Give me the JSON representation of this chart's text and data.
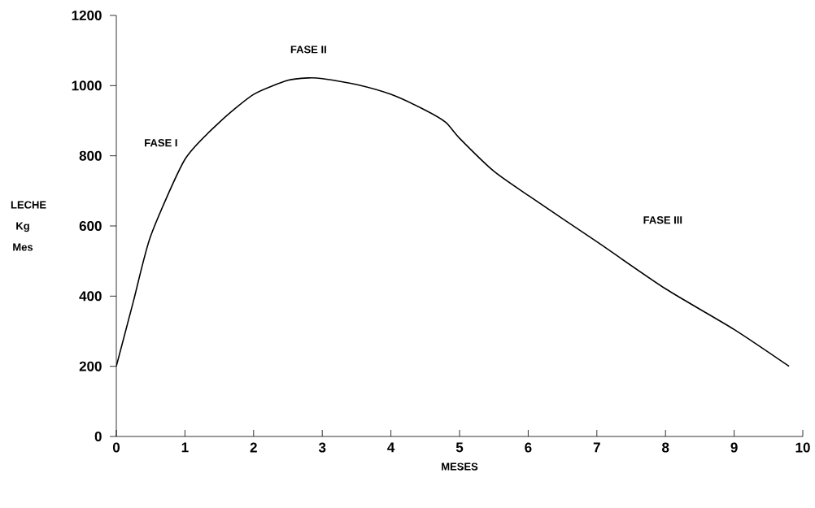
{
  "chart_data": {
    "type": "line",
    "xlabel": "MESES",
    "ylabel": "LECHE Kg Mes",
    "x": [
      0,
      0.25,
      0.5,
      1,
      1.5,
      2,
      2.5,
      2.8,
      3,
      3.5,
      4,
      4.5,
      4.8,
      5,
      5.5,
      6,
      7,
      8,
      9,
      9.8
    ],
    "series": [
      {
        "color": "#000000",
        "values": [
          200,
          386,
          571,
          790,
          895,
          975,
          1015,
          1022,
          1020,
          1003,
          975,
          930,
          895,
          850,
          756,
          687,
          555,
          421,
          305,
          200
        ]
      }
    ],
    "xlim": [
      0,
      10
    ],
    "ylim": [
      0,
      1200
    ],
    "xticks": [
      0,
      1,
      2,
      3,
      4,
      5,
      6,
      7,
      8,
      9,
      10
    ],
    "yticks": [
      0,
      200,
      400,
      600,
      800,
      1000,
      1200
    ],
    "grid": false,
    "marker": "none",
    "line_style": "solid",
    "annotations": [
      "FASE I",
      "FASE II",
      "FASE III"
    ]
  }
}
